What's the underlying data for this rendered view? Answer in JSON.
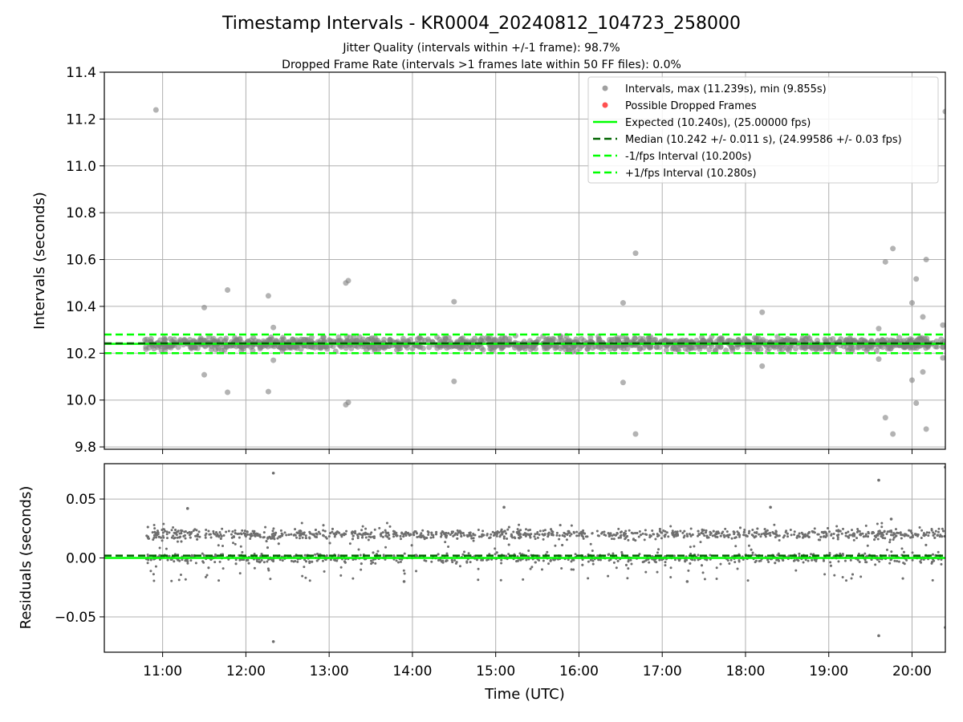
{
  "chart_data": {
    "type": "scatter",
    "title": "Timestamp Intervals - KR0004_20240812_104723_258000",
    "subtitle_lines": [
      "Jitter Quality (intervals within +/-1 frame): 98.7%",
      "Dropped Frame Rate (intervals >1 frames late within 50 FF files): 0.0%"
    ],
    "xlabel": "Time (UTC)",
    "x_axis_unit": "hours (UTC)",
    "x_range": [
      10.3,
      20.4
    ],
    "x_ticks": [
      {
        "value": 11,
        "label": "11:00"
      },
      {
        "value": 12,
        "label": "12:00"
      },
      {
        "value": 13,
        "label": "13:00"
      },
      {
        "value": 14,
        "label": "14:00"
      },
      {
        "value": 15,
        "label": "15:00"
      },
      {
        "value": 16,
        "label": "16:00"
      },
      {
        "value": 17,
        "label": "17:00"
      },
      {
        "value": 18,
        "label": "18:00"
      },
      {
        "value": 19,
        "label": "19:00"
      },
      {
        "value": 20,
        "label": "20:00"
      }
    ],
    "grid": true,
    "legend_position": "top-right",
    "colors": {
      "intervals": "#808080",
      "dropped": "#ff0000",
      "expected": "#00ff00",
      "median": "#006400",
      "fps_band": "#00ff00",
      "residuals": "#6e6e6e",
      "grid": "#b0b0b0"
    },
    "top_panel": {
      "ylabel": "Intervals (seconds)",
      "ylim": [
        9.79,
        11.4
      ],
      "y_ticks": [
        {
          "value": 9.8,
          "label": "9.8"
        },
        {
          "value": 10.0,
          "label": "10.0"
        },
        {
          "value": 10.2,
          "label": "10.2"
        },
        {
          "value": 10.4,
          "label": "10.4"
        },
        {
          "value": 10.6,
          "label": "10.6"
        },
        {
          "value": 10.8,
          "label": "10.8"
        },
        {
          "value": 11.0,
          "label": "11.0"
        },
        {
          "value": 11.2,
          "label": "11.2"
        },
        {
          "value": 11.4,
          "label": "11.4"
        }
      ],
      "expected": 10.24,
      "median": 10.242,
      "minus_fps": 10.2,
      "plus_fps": 10.28,
      "main_cluster": {
        "x_start": 10.78,
        "x_end": 20.4,
        "center": 10.24,
        "spread": 0.04
      },
      "outliers": [
        [
          10.92,
          11.239
        ],
        [
          11.5,
          10.395
        ],
        [
          11.5,
          10.108
        ],
        [
          11.78,
          10.47
        ],
        [
          11.78,
          10.033
        ],
        [
          12.27,
          10.445
        ],
        [
          12.27,
          10.036
        ],
        [
          12.33,
          10.31
        ],
        [
          12.33,
          10.17
        ],
        [
          13.2,
          10.5
        ],
        [
          13.23,
          10.51
        ],
        [
          13.2,
          9.98
        ],
        [
          13.23,
          9.99
        ],
        [
          14.5,
          10.42
        ],
        [
          14.5,
          10.08
        ],
        [
          16.53,
          10.415
        ],
        [
          16.53,
          10.075
        ],
        [
          16.68,
          10.627
        ],
        [
          16.68,
          9.855
        ],
        [
          18.2,
          10.375
        ],
        [
          18.2,
          10.145
        ],
        [
          19.6,
          10.305
        ],
        [
          19.6,
          10.175
        ],
        [
          19.68,
          10.59
        ],
        [
          19.68,
          9.925
        ],
        [
          19.77,
          10.647
        ],
        [
          19.77,
          9.855
        ],
        [
          20.0,
          10.415
        ],
        [
          20.0,
          10.085
        ],
        [
          20.05,
          10.517
        ],
        [
          20.05,
          9.987
        ],
        [
          20.13,
          10.355
        ],
        [
          20.13,
          10.12
        ],
        [
          20.17,
          10.6
        ],
        [
          20.17,
          9.876
        ],
        [
          20.37,
          10.32
        ],
        [
          20.37,
          10.18
        ],
        [
          20.4,
          11.232
        ]
      ]
    },
    "bottom_panel": {
      "ylabel": "Residuals (seconds)",
      "ylim": [
        -0.08,
        0.08
      ],
      "y_ticks": [
        {
          "value": -0.05,
          "label": "−0.05"
        },
        {
          "value": 0.0,
          "label": "0.00"
        },
        {
          "value": 0.05,
          "label": "0.05"
        }
      ],
      "zero_line": 0.0,
      "median_offset": 0.002,
      "bands": [
        0.0,
        0.02
      ],
      "band_spread": 0.006,
      "outliers": [
        [
          12.33,
          0.072
        ],
        [
          12.33,
          -0.071
        ],
        [
          19.6,
          0.066
        ],
        [
          19.6,
          -0.066
        ],
        [
          20.4,
          0.077
        ],
        [
          20.4,
          -0.059
        ],
        [
          11.3,
          0.042
        ],
        [
          15.1,
          0.043
        ],
        [
          18.3,
          0.043
        ],
        [
          17.3,
          -0.02
        ],
        [
          13.9,
          -0.02
        ],
        [
          19.75,
          0.033
        ]
      ]
    },
    "legend": [
      {
        "type": "marker",
        "color": "#a0a0a0",
        "label": "Intervals, max (11.239s), min (9.855s)"
      },
      {
        "type": "marker",
        "color": "#ff5050",
        "label": "Possible Dropped Frames"
      },
      {
        "type": "solid",
        "color": "#00ff00",
        "label": "Expected (10.240s), (25.00000 fps)"
      },
      {
        "type": "dashed",
        "color": "#006400",
        "label": "Median (10.242 +/- 0.011 s), (24.99586 +/- 0.03 fps)"
      },
      {
        "type": "dashed",
        "color": "#00ff00",
        "label": "-1/fps Interval (10.200s)"
      },
      {
        "type": "dashed",
        "color": "#00ff00",
        "label": "+1/fps Interval (10.280s)"
      }
    ]
  }
}
